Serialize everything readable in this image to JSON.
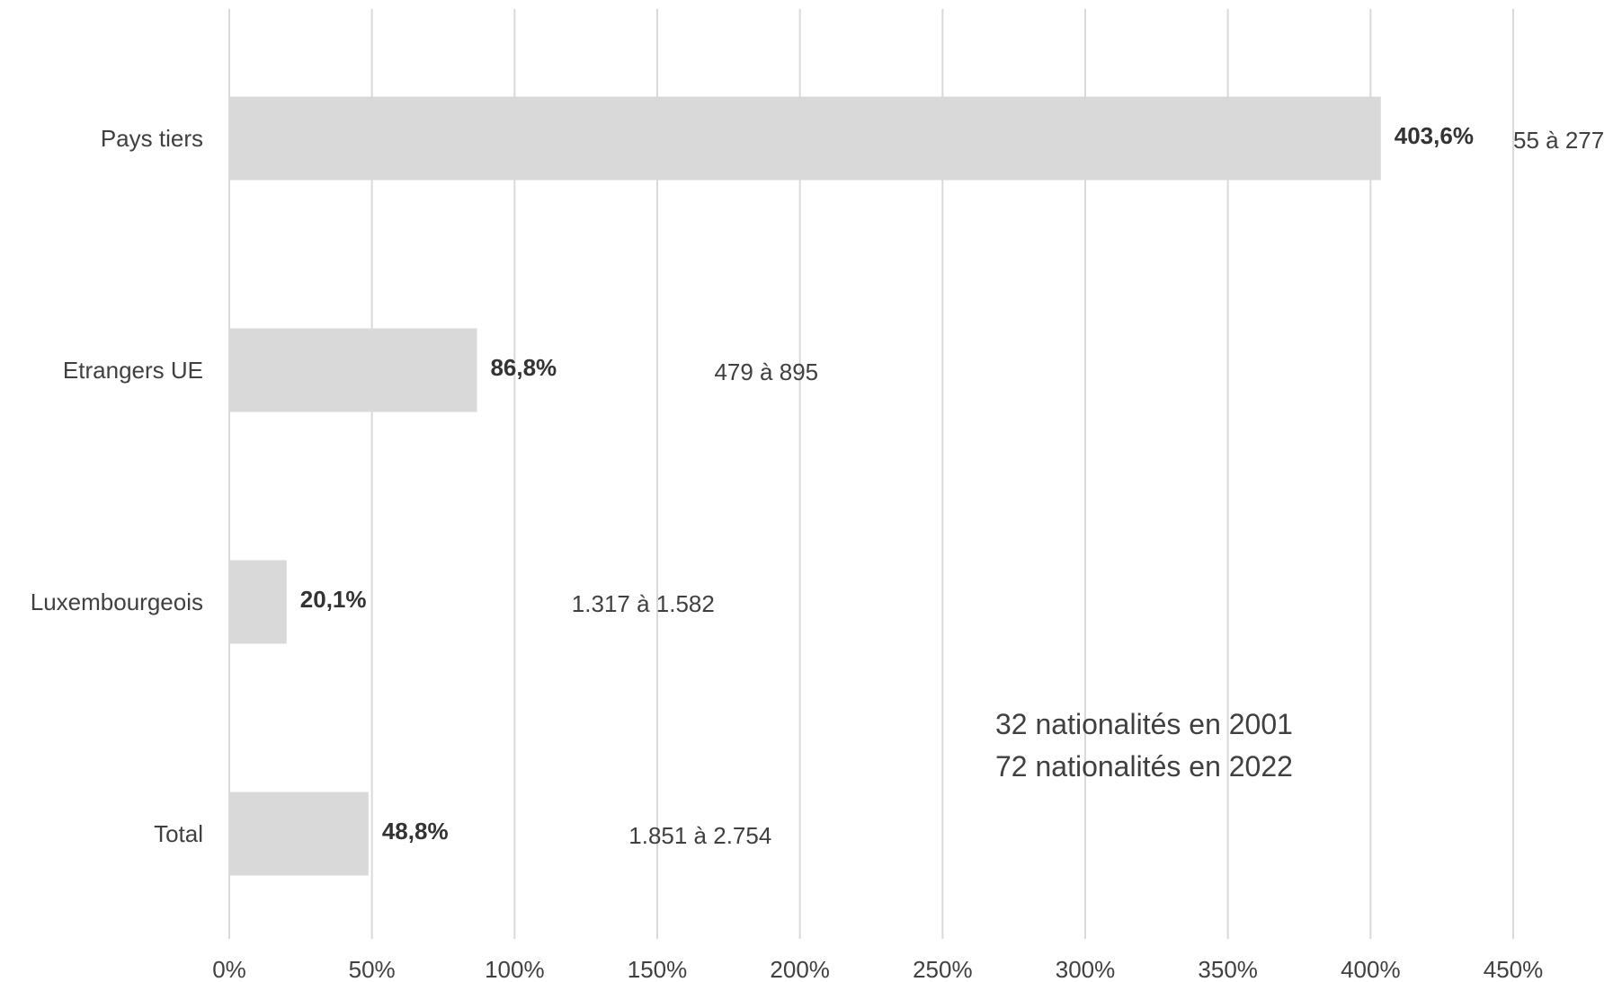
{
  "chart_data": {
    "type": "bar",
    "orientation": "horizontal",
    "categories": [
      "Pays tiers",
      "Etrangers UE",
      "Luxembourgeois",
      "Total"
    ],
    "values": [
      403.6,
      86.8,
      20.1,
      48.8
    ],
    "value_labels": [
      "403,6%",
      "86,8%",
      "20,1%",
      "48,8%"
    ],
    "range_labels": [
      "55 à 277",
      "479 à 895",
      "1.317 à 1.582",
      "1.851 à 2.754"
    ],
    "range_label_positions": [
      450,
      170,
      120,
      140
    ],
    "xlim": [
      0,
      450
    ],
    "x_ticks": [
      0,
      50,
      100,
      150,
      200,
      250,
      300,
      350,
      400,
      450
    ],
    "x_tick_labels": [
      "0%",
      "50%",
      "100%",
      "150%",
      "200%",
      "250%",
      "300%",
      "350%",
      "400%",
      "450%"
    ],
    "grid": true,
    "bar_color": "#d9d9d9",
    "grid_color": "#d9d9d9",
    "annotations": [
      "32 nationalités en 2001",
      "72 nationalités en 2022"
    ],
    "title": "",
    "xlabel": "",
    "ylabel": ""
  }
}
